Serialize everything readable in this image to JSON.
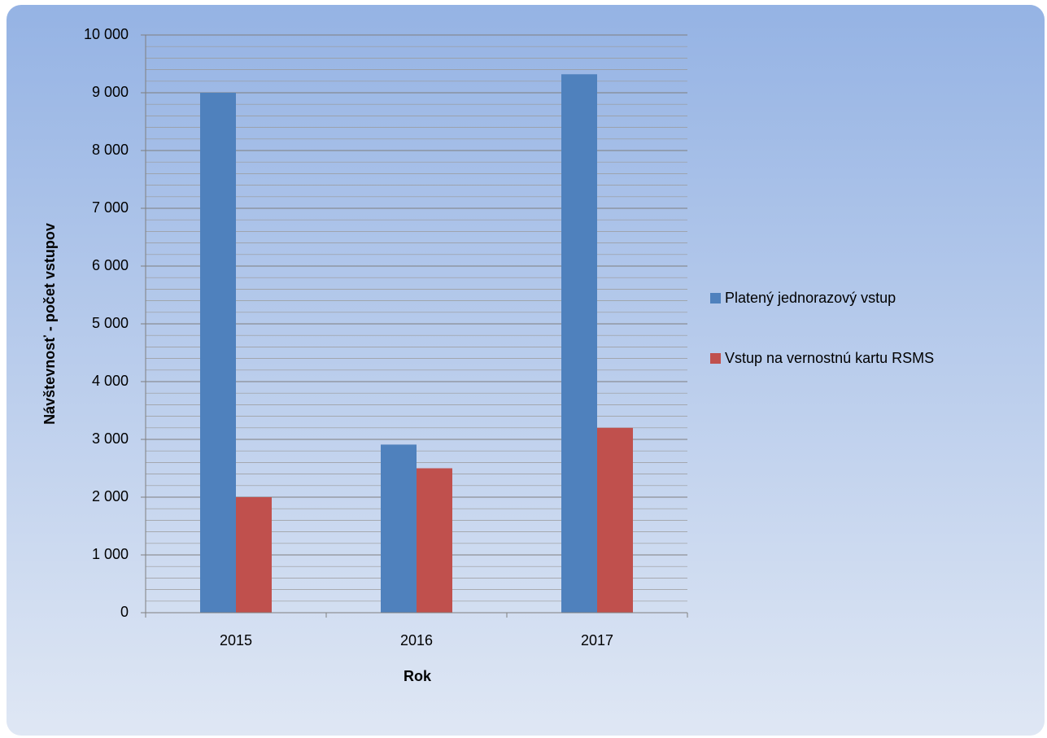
{
  "chart_data": {
    "type": "bar",
    "xlabel": "Rok",
    "ylabel": "Návštevnosť - počet vstupov",
    "categories": [
      "2015",
      "2016",
      "2017"
    ],
    "series": [
      {
        "name": "Platený jednorazový vstup",
        "color": "#4f81bd",
        "values": [
          9000,
          2910,
          9320
        ]
      },
      {
        "name": "Vstup na vernostnú kartu RSMS",
        "color": "#c0504d",
        "values": [
          2000,
          2500,
          3200
        ]
      }
    ],
    "ylim": [
      0,
      10000
    ],
    "yticks": [
      0,
      {
        "value": 1000,
        "label": "1 000"
      },
      {
        "value": 2000,
        "label": "2 000"
      },
      {
        "value": 3000,
        "label": "3 000"
      },
      {
        "value": 4000,
        "label": "4 000"
      },
      {
        "value": 5000,
        "label": "5 000"
      },
      {
        "value": 6000,
        "label": "6 000"
      },
      {
        "value": 7000,
        "label": "7 000"
      },
      {
        "value": 8000,
        "label": "8 000"
      },
      {
        "value": 9000,
        "label": "9 000"
      },
      {
        "value": 10000,
        "label": "10 000"
      }
    ],
    "grid": true,
    "minor_grid_interval": 200,
    "legend": "right"
  }
}
